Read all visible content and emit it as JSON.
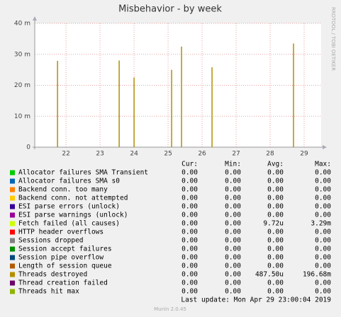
{
  "chart_data": {
    "type": "spike",
    "title": "Misbehavior - by week",
    "side_text": "RRDTOOL / TOBI OETIKER",
    "xlim": [
      21.08,
      29.5
    ],
    "xticks": [
      22,
      23,
      24,
      25,
      26,
      27,
      28,
      29
    ],
    "ylim": [
      0,
      0.04
    ],
    "yticks": [
      {
        "value": 0,
        "label": "0"
      },
      {
        "value": 0.01,
        "label": "10 m"
      },
      {
        "value": 0.02,
        "label": "20 m"
      },
      {
        "value": 0.03,
        "label": "30 m"
      },
      {
        "value": 0.04,
        "label": "40 m"
      }
    ],
    "grid": true,
    "series": [
      {
        "name": "Threads destroyed",
        "color": "#b38f00",
        "x": [
          21.75,
          23.5625,
          24.0,
          25.104,
          25.396,
          26.292,
          28.6875
        ],
        "values": [
          0.0279,
          0.028,
          0.0225,
          0.025,
          0.0325,
          0.0258,
          0.0335
        ]
      }
    ],
    "legend": {
      "headers": [
        "Cur:",
        "Min:",
        "Avg:",
        "Max:"
      ],
      "rows": [
        {
          "color": "#00cc00",
          "name": "Allocator failures SMA Transient",
          "cur": "0.00",
          "min": "0.00",
          "avg": "0.00",
          "max": "0.00"
        },
        {
          "color": "#0066b3",
          "name": "Allocator failures SMA s0",
          "cur": "0.00",
          "min": "0.00",
          "avg": "0.00",
          "max": "0.00"
        },
        {
          "color": "#ff8000",
          "name": "Backend conn. too many",
          "cur": "0.00",
          "min": "0.00",
          "avg": "0.00",
          "max": "0.00"
        },
        {
          "color": "#ffcc00",
          "name": "Backend conn. not attempted",
          "cur": "0.00",
          "min": "0.00",
          "avg": "0.00",
          "max": "0.00"
        },
        {
          "color": "#330099",
          "name": "ESI parse errors (unlock)",
          "cur": "0.00",
          "min": "0.00",
          "avg": "0.00",
          "max": "0.00"
        },
        {
          "color": "#990099",
          "name": "ESI parse warnings (unlock)",
          "cur": "0.00",
          "min": "0.00",
          "avg": "0.00",
          "max": "0.00"
        },
        {
          "color": "#ccff00",
          "name": "Fetch failed (all causes)",
          "cur": "0.00",
          "min": "0.00",
          "avg": "9.72u",
          "max": "3.29m"
        },
        {
          "color": "#ff0000",
          "name": "HTTP header overflows",
          "cur": "0.00",
          "min": "0.00",
          "avg": "0.00",
          "max": "0.00"
        },
        {
          "color": "#808080",
          "name": "Sessions dropped",
          "cur": "0.00",
          "min": "0.00",
          "avg": "0.00",
          "max": "0.00"
        },
        {
          "color": "#008f00",
          "name": "Session accept failures",
          "cur": "0.00",
          "min": "0.00",
          "avg": "0.00",
          "max": "0.00"
        },
        {
          "color": "#00487d",
          "name": "Session pipe overflow",
          "cur": "0.00",
          "min": "0.00",
          "avg": "0.00",
          "max": "0.00"
        },
        {
          "color": "#b35a00",
          "name": "Length of session queue",
          "cur": "0.00",
          "min": "0.00",
          "avg": "0.00",
          "max": "0.00"
        },
        {
          "color": "#b38f00",
          "name": "Threads destroyed",
          "cur": "0.00",
          "min": "0.00",
          "avg": "487.50u",
          "max": "196.68m"
        },
        {
          "color": "#6b006b",
          "name": "Thread creation failed",
          "cur": "0.00",
          "min": "0.00",
          "avg": "0.00",
          "max": "0.00"
        },
        {
          "color": "#8fb300",
          "name": "Threads hit max",
          "cur": "0.00",
          "min": "0.00",
          "avg": "0.00",
          "max": "0.00"
        }
      ]
    },
    "last_update": "Last update: Mon Apr 29 23:00:04 2019",
    "footer": "Munin 2.0.45"
  }
}
